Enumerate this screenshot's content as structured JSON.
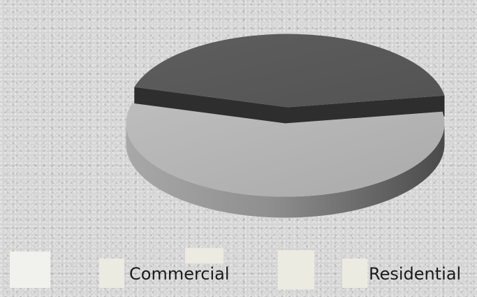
{
  "chart_data": {
    "type": "pie",
    "style": "3d-exploded",
    "categories": [
      "Commercial",
      "Residential"
    ],
    "values": [
      43,
      57
    ],
    "colors": {
      "Commercial": "#5a5a5a",
      "Residential": "#b3b3b3"
    },
    "legend": {
      "placement": "bottom",
      "entries": [
        "Commercial",
        "Residential"
      ]
    }
  }
}
